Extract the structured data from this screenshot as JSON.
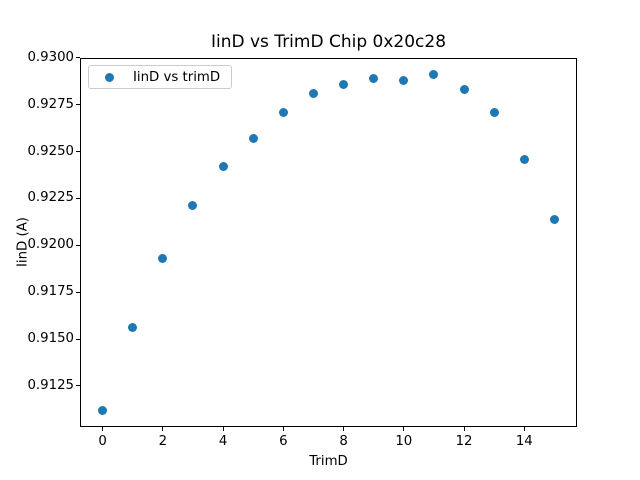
{
  "figure": {
    "background": "#ffffff",
    "text_color": "#000000",
    "spine_color": "#000000"
  },
  "chart_data": {
    "type": "scatter",
    "title": "IinD vs TrimD Chip 0x20c28",
    "xlabel": "TrimD",
    "ylabel": "IinD (A)",
    "legend": {
      "label": "IinD vs trimD",
      "position": "upper left"
    },
    "marker_color": "#1f77b4",
    "grid": false,
    "x": [
      0,
      1,
      2,
      3,
      4,
      5,
      6,
      7,
      8,
      9,
      10,
      11,
      12,
      13,
      14,
      15
    ],
    "y": [
      0.9112,
      0.9156,
      0.9193,
      0.9221,
      0.9242,
      0.9257,
      0.9271,
      0.9281,
      0.9286,
      0.9289,
      0.9288,
      0.9291,
      0.9283,
      0.9271,
      0.9246,
      0.9214
    ],
    "xlim": [
      -0.75,
      15.75
    ],
    "ylim": [
      0.910305,
      0.929995
    ],
    "x_ticks": [
      0,
      2,
      4,
      6,
      8,
      10,
      12,
      14
    ],
    "y_tick_labels": [
      "0.9300",
      "0.9275",
      "0.9250",
      "0.9225",
      "0.9200",
      "0.9175",
      "0.9150",
      "0.9125"
    ]
  }
}
